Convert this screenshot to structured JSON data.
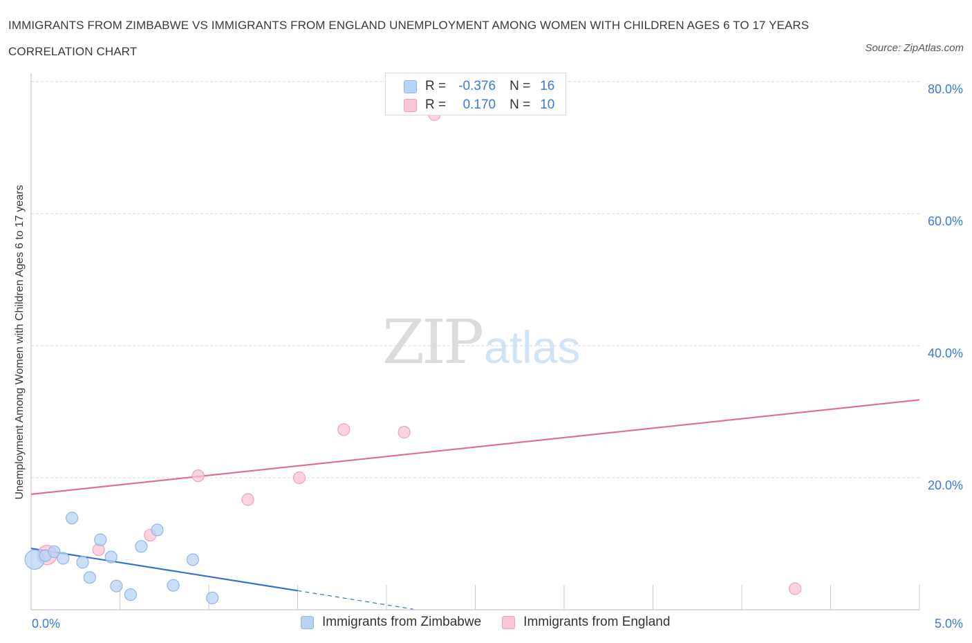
{
  "header": {
    "title": "IMMIGRANTS FROM ZIMBABWE VS IMMIGRANTS FROM ENGLAND UNEMPLOYMENT AMONG WOMEN WITH CHILDREN AGES 6 TO 17 YEARS CORRELATION CHART",
    "source": "Source: ZipAtlas.com"
  },
  "watermark": {
    "zip": "ZIP",
    "atlas": "atlas"
  },
  "stats_legend": {
    "rows": [
      {
        "r_label": "R =",
        "r_value": "-0.376",
        "n_label": "N =",
        "n_value": "16"
      },
      {
        "r_label": "R =",
        "r_value": "0.170",
        "n_label": "N =",
        "n_value": "10"
      }
    ]
  },
  "colors": {
    "zimbabwe_fill": "#b8d3f5",
    "zimbabwe_stroke": "#8fb6e8",
    "zimbabwe_line": "#2f72d0",
    "england_fill": "#f9c6d6",
    "england_stroke": "#f0a0ba",
    "england_line": "#e26b93",
    "grid": "#d9d9d9",
    "axis_text": "#3a7bd5"
  },
  "chart_data": {
    "type": "scatter",
    "title": "IMMIGRANTS FROM ZIMBABWE VS IMMIGRANTS FROM ENGLAND UNEMPLOYMENT AMONG WOMEN WITH CHILDREN AGES 6 TO 17 YEARS CORRELATION CHART",
    "xlabel": "",
    "ylabel": "Unemployment Among Women with Children Ages 6 to 17 years",
    "xlim": [
      0,
      5
    ],
    "ylim": [
      0,
      80
    ],
    "x_tick_labels": [
      "0.0%",
      "5.0%"
    ],
    "y_ticks": [
      20,
      40,
      60,
      80
    ],
    "y_tick_labels": [
      "20.0%",
      "40.0%",
      "60.0%",
      "80.0%"
    ],
    "grid": true,
    "legend_position": "bottom",
    "series": [
      {
        "name": "Immigrants from Zimbabwe",
        "color": "#b8d3f5",
        "points": [
          {
            "x": 0.02,
            "y": 7.6,
            "size": "large"
          },
          {
            "x": 0.08,
            "y": 8.2
          },
          {
            "x": 0.13,
            "y": 8.8
          },
          {
            "x": 0.18,
            "y": 7.8
          },
          {
            "x": 0.23,
            "y": 13.9
          },
          {
            "x": 0.29,
            "y": 7.2
          },
          {
            "x": 0.33,
            "y": 4.9
          },
          {
            "x": 0.39,
            "y": 10.6
          },
          {
            "x": 0.45,
            "y": 8.0
          },
          {
            "x": 0.48,
            "y": 3.6
          },
          {
            "x": 0.56,
            "y": 2.3
          },
          {
            "x": 0.62,
            "y": 9.6
          },
          {
            "x": 0.71,
            "y": 12.1
          },
          {
            "x": 0.8,
            "y": 3.7
          },
          {
            "x": 0.91,
            "y": 7.6
          },
          {
            "x": 1.02,
            "y": 1.8
          }
        ],
        "trend": {
          "x0": 0,
          "y0": 9.3,
          "x1": 1.5,
          "y1": 2.9,
          "dash_to_x": 2.15,
          "dash_to_y": 0.1
        }
      },
      {
        "name": "Immigrants from England",
        "color": "#f9c6d6",
        "points": [
          {
            "x": 0.09,
            "y": 8.3,
            "size": "large"
          },
          {
            "x": 0.38,
            "y": 9.1
          },
          {
            "x": 0.67,
            "y": 11.3
          },
          {
            "x": 0.94,
            "y": 20.3
          },
          {
            "x": 1.22,
            "y": 16.7
          },
          {
            "x": 1.51,
            "y": 20.0
          },
          {
            "x": 1.76,
            "y": 27.3
          },
          {
            "x": 2.1,
            "y": 26.9
          },
          {
            "x": 2.27,
            "y": 75.0
          },
          {
            "x": 4.3,
            "y": 3.2
          }
        ],
        "trend": {
          "x0": 0,
          "y0": 17.5,
          "x1": 5,
          "y1": 31.8
        }
      }
    ]
  }
}
